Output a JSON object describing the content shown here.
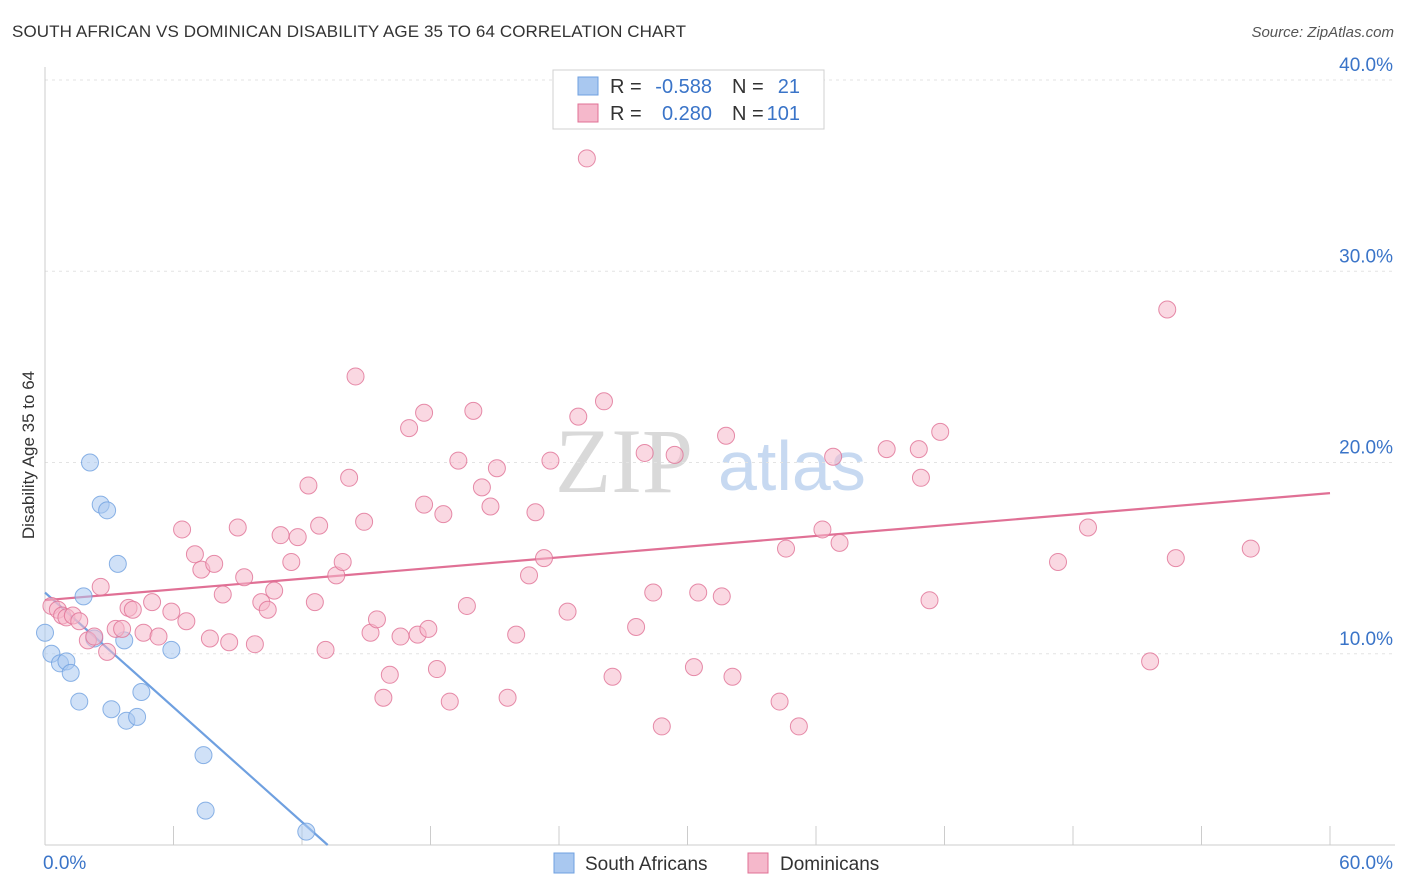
{
  "header": {
    "title": "SOUTH AFRICAN VS DOMINICAN DISABILITY AGE 35 TO 64 CORRELATION CHART",
    "source": "Source: ZipAtlas.com"
  },
  "watermark": {
    "zip": "ZIP",
    "atlas": "atlas"
  },
  "legend": {
    "rows": [
      {
        "r_label": "R =",
        "r_value": "-0.588",
        "n_label": "N =",
        "n_value": "21",
        "color": "#a9c8f0"
      },
      {
        "r_label": "R =",
        "r_value": "0.280",
        "n_label": "N =",
        "n_value": "101",
        "color": "#f5b8cb"
      }
    ]
  },
  "bottom_legend": {
    "south_africans": "South Africans",
    "dominicans": "Dominicans"
  },
  "chart_data": {
    "type": "scatter",
    "title": "SOUTH AFRICAN VS DOMINICAN DISABILITY AGE 35 TO 64 CORRELATION CHART",
    "xlabel": "",
    "ylabel": "Disability Age 35 to 64",
    "xlim": [
      0,
      60
    ],
    "ylim": [
      0,
      40
    ],
    "x_tick_labels": [
      "0.0%",
      "60.0%"
    ],
    "y_ticks": [
      10,
      20,
      30,
      40
    ],
    "y_tick_labels": [
      "10.0%",
      "20.0%",
      "30.0%",
      "40.0%"
    ],
    "grid": true,
    "series": [
      {
        "name": "South Africans",
        "color": "#6fa0e0",
        "fill": "#a9c8f0",
        "trend": {
          "x0": 0,
          "y0": 13.2,
          "x1": 13.2,
          "y1": 0
        },
        "points": [
          [
            0.0,
            11.1
          ],
          [
            0.3,
            10.0
          ],
          [
            0.7,
            9.5
          ],
          [
            1.0,
            9.6
          ],
          [
            1.2,
            9.0
          ],
          [
            1.6,
            7.5
          ],
          [
            1.8,
            13.0
          ],
          [
            2.1,
            20.0
          ],
          [
            2.3,
            10.8
          ],
          [
            2.6,
            17.8
          ],
          [
            2.9,
            17.5
          ],
          [
            3.1,
            7.1
          ],
          [
            3.4,
            14.7
          ],
          [
            3.7,
            10.7
          ],
          [
            3.8,
            6.5
          ],
          [
            4.3,
            6.7
          ],
          [
            4.5,
            8.0
          ],
          [
            5.9,
            10.2
          ],
          [
            7.4,
            4.7
          ],
          [
            7.5,
            1.8
          ],
          [
            12.2,
            0.7
          ]
        ]
      },
      {
        "name": "Dominicans",
        "color": "#e07095",
        "fill": "#f5b8cb",
        "trend": {
          "x0": 0,
          "y0": 12.8,
          "x1": 60,
          "y1": 18.4
        },
        "points": [
          [
            0.3,
            12.5
          ],
          [
            0.6,
            12.3
          ],
          [
            0.8,
            12.0
          ],
          [
            1.0,
            11.9
          ],
          [
            1.3,
            12.0
          ],
          [
            1.6,
            11.7
          ],
          [
            2.0,
            10.7
          ],
          [
            2.3,
            10.9
          ],
          [
            2.6,
            13.5
          ],
          [
            2.9,
            10.1
          ],
          [
            3.3,
            11.3
          ],
          [
            3.6,
            11.3
          ],
          [
            3.9,
            12.4
          ],
          [
            4.1,
            12.3
          ],
          [
            4.6,
            11.1
          ],
          [
            5.0,
            12.7
          ],
          [
            5.3,
            10.9
          ],
          [
            5.9,
            12.2
          ],
          [
            6.4,
            16.5
          ],
          [
            6.6,
            11.7
          ],
          [
            7.0,
            15.2
          ],
          [
            7.3,
            14.4
          ],
          [
            7.7,
            10.8
          ],
          [
            7.9,
            14.7
          ],
          [
            8.3,
            13.1
          ],
          [
            8.6,
            10.6
          ],
          [
            9.0,
            16.6
          ],
          [
            9.3,
            14.0
          ],
          [
            9.8,
            10.5
          ],
          [
            10.1,
            12.7
          ],
          [
            10.4,
            12.3
          ],
          [
            10.7,
            13.3
          ],
          [
            11.0,
            16.2
          ],
          [
            11.5,
            14.8
          ],
          [
            11.8,
            16.1
          ],
          [
            12.3,
            18.8
          ],
          [
            12.6,
            12.7
          ],
          [
            12.8,
            16.7
          ],
          [
            13.1,
            10.2
          ],
          [
            13.6,
            14.1
          ],
          [
            13.9,
            14.8
          ],
          [
            14.2,
            19.2
          ],
          [
            14.5,
            24.5
          ],
          [
            14.9,
            16.9
          ],
          [
            15.2,
            11.1
          ],
          [
            15.5,
            11.8
          ],
          [
            15.8,
            7.7
          ],
          [
            16.1,
            8.9
          ],
          [
            16.6,
            10.9
          ],
          [
            17.0,
            21.8
          ],
          [
            17.4,
            11.0
          ],
          [
            17.7,
            22.6
          ],
          [
            17.9,
            11.3
          ],
          [
            18.3,
            9.2
          ],
          [
            18.6,
            17.3
          ],
          [
            18.9,
            7.5
          ],
          [
            19.3,
            20.1
          ],
          [
            19.7,
            12.5
          ],
          [
            20.0,
            22.7
          ],
          [
            20.4,
            18.7
          ],
          [
            20.8,
            17.7
          ],
          [
            21.1,
            19.7
          ],
          [
            21.6,
            7.7
          ],
          [
            22.0,
            11.0
          ],
          [
            22.6,
            14.1
          ],
          [
            22.9,
            17.4
          ],
          [
            23.3,
            15.0
          ],
          [
            23.6,
            20.1
          ],
          [
            24.4,
            12.2
          ],
          [
            24.9,
            22.4
          ],
          [
            25.3,
            35.9
          ],
          [
            26.1,
            23.2
          ],
          [
            26.5,
            8.8
          ],
          [
            27.6,
            11.4
          ],
          [
            28.0,
            20.5
          ],
          [
            28.4,
            13.2
          ],
          [
            28.8,
            6.2
          ],
          [
            29.4,
            20.4
          ],
          [
            30.3,
            9.3
          ],
          [
            30.5,
            13.2
          ],
          [
            31.6,
            13.0
          ],
          [
            31.8,
            21.4
          ],
          [
            32.1,
            8.8
          ],
          [
            34.3,
            7.5
          ],
          [
            34.6,
            15.5
          ],
          [
            35.2,
            6.2
          ],
          [
            36.3,
            16.5
          ],
          [
            36.8,
            20.3
          ],
          [
            37.1,
            15.8
          ],
          [
            39.3,
            20.7
          ],
          [
            40.8,
            20.7
          ],
          [
            40.9,
            19.2
          ],
          [
            41.3,
            12.8
          ],
          [
            41.8,
            21.6
          ],
          [
            47.3,
            14.8
          ],
          [
            48.7,
            16.6
          ],
          [
            51.6,
            9.6
          ],
          [
            52.4,
            28.0
          ],
          [
            52.8,
            15.0
          ],
          [
            56.3,
            15.5
          ],
          [
            17.7,
            17.8
          ]
        ]
      }
    ]
  }
}
